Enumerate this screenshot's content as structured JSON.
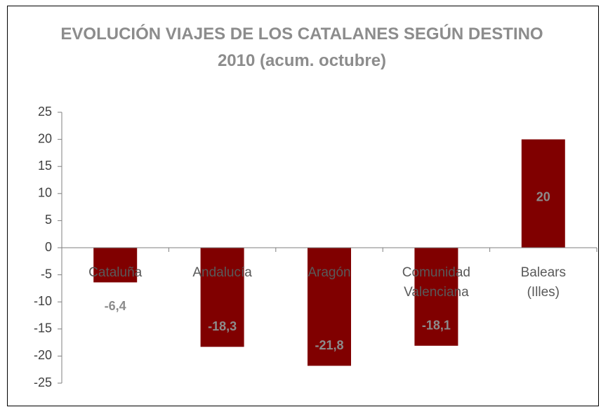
{
  "chart_data": {
    "type": "bar",
    "title": "EVOLUCIÓN VIAJES DE LOS CATALANES SEGÚN DESTINO 2010 (acum. octubre)",
    "categories": [
      "Cataluña",
      "Andalucía",
      "Aragón",
      "Comunidad Valenciana",
      "Balears (Illes)"
    ],
    "values": [
      -6.4,
      -18.3,
      -21.8,
      -18.1,
      20
    ],
    "value_labels": [
      "-6,4",
      "-18,3",
      "-21,8",
      "-18,1",
      "20"
    ],
    "color": "#800000",
    "ylim": [
      -25,
      25
    ],
    "yticks": [
      -25,
      -20,
      -15,
      -10,
      -5,
      0,
      5,
      10,
      15,
      20,
      25
    ]
  }
}
